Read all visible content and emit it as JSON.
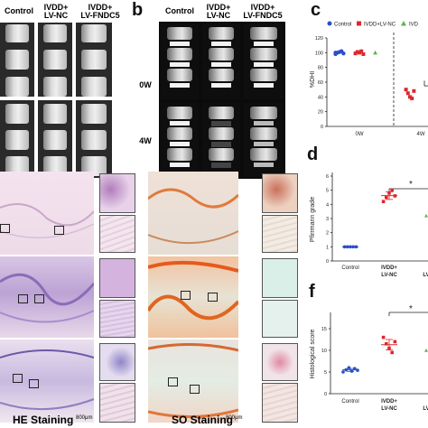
{
  "panels": {
    "b_letter": "b",
    "c_letter": "c",
    "d_letter": "d",
    "f_letter": "f"
  },
  "panel_a": {
    "headers": [
      "Control",
      "IVDD+\nLV-NC",
      "IVDD+\nLV-FNDC5"
    ]
  },
  "panel_b": {
    "headers": [
      "Control",
      "IVDD+\nLV-NC",
      "IVDD+\nLV-FNDC5"
    ],
    "rows": [
      "0W",
      "4W"
    ]
  },
  "panel_c": {
    "legend": [
      "Control",
      "IVDD+LV-NC",
      "IVD"
    ],
    "ylabel": "%DHI",
    "yticks": [
      "120",
      "100",
      "80",
      "60",
      "40",
      "20",
      "0"
    ],
    "xticks": [
      "0W",
      "4W"
    ]
  },
  "panel_d": {
    "ylabel": "Pfirrmann grade",
    "yticks": [
      "6",
      "5",
      "4",
      "3",
      "2",
      "1",
      "0"
    ],
    "xticks": [
      "Control",
      "IVDD+\nLV-NC",
      "LV"
    ],
    "sig": "*"
  },
  "panel_f": {
    "ylabel": "Histological score",
    "yticks": [
      "15",
      "10",
      "5",
      "0"
    ],
    "xticks": [
      "Control",
      "IVDD+\nLV-NC",
      "LV"
    ],
    "sig": "*"
  },
  "panel_e": {
    "he_caption": "HE Staining",
    "so_caption": "SO Staining",
    "he_scale": "800μm",
    "so_scale": "800μm"
  },
  "colors": {
    "control": "#2b4fc4",
    "ivdd_nc": "#e0262b",
    "fndc5": "#5ab44a"
  },
  "chart_data": [
    {
      "type": "scatter",
      "title": "",
      "ylabel": "%DHI",
      "ylim": [
        0,
        120
      ],
      "categories": [
        "0W",
        "4W"
      ],
      "series": [
        {
          "name": "Control",
          "x": [
            "0W",
            "0W",
            "0W",
            "0W",
            "0W",
            "0W"
          ],
          "values": [
            98,
            100,
            101,
            102,
            99,
            100
          ]
        },
        {
          "name": "IVDD+LV-NC",
          "x": [
            "0W",
            "0W",
            "0W",
            "0W",
            "0W",
            "4W",
            "4W",
            "4W",
            "4W",
            "4W"
          ],
          "values": [
            99,
            101,
            100,
            102,
            98,
            50,
            45,
            40,
            38,
            48
          ]
        },
        {
          "name": "IVD",
          "x": [
            "0W"
          ],
          "values": [
            100
          ]
        }
      ]
    },
    {
      "type": "scatter",
      "title": "",
      "ylabel": "Pfirrmann grade",
      "ylim": [
        0,
        6
      ],
      "categories": [
        "Control",
        "IVDD+LV-NC",
        "LV"
      ],
      "series": [
        {
          "x": [
            "Control",
            "Control",
            "Control",
            "Control",
            "Control"
          ],
          "values": [
            1,
            1,
            1,
            1,
            1
          ]
        },
        {
          "x": [
            "IVDD+LV-NC",
            "IVDD+LV-NC",
            "IVDD+LV-NC",
            "IVDD+LV-NC",
            "IVDD+LV-NC"
          ],
          "values": [
            4.2,
            4.5,
            4.8,
            5.0,
            4.6
          ]
        },
        {
          "x": [
            "LV"
          ],
          "values": [
            3.2
          ]
        }
      ]
    },
    {
      "type": "scatter",
      "title": "",
      "ylabel": "Histological score",
      "ylim": [
        0,
        15
      ],
      "categories": [
        "Control",
        "IVDD+LV-NC",
        "LV"
      ],
      "series": [
        {
          "x": [
            "Control",
            "Control",
            "Control",
            "Control",
            "Control",
            "Control"
          ],
          "values": [
            5.0,
            5.5,
            6.0,
            5.2,
            5.8,
            5.4
          ]
        },
        {
          "x": [
            "IVDD+LV-NC",
            "IVDD+LV-NC",
            "IVDD+LV-NC",
            "IVDD+LV-NC",
            "IVDD+LV-NC"
          ],
          "values": [
            13.0,
            11.5,
            10.5,
            9.5,
            12.0
          ]
        },
        {
          "x": [
            "LV"
          ],
          "values": [
            10.0
          ]
        }
      ]
    }
  ]
}
